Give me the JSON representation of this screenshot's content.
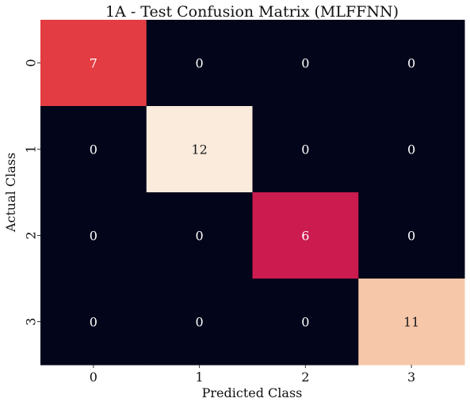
{
  "chart_data": {
    "type": "heatmap",
    "title": "1A - Test Confusion Matrix (MLFFNN)",
    "xlabel": "Predicted Class",
    "ylabel": "Actual Class",
    "x_categories": [
      "0",
      "1",
      "2",
      "3"
    ],
    "y_categories": [
      "0",
      "1",
      "2",
      "3"
    ],
    "values": [
      [
        7,
        0,
        0,
        0
      ],
      [
        0,
        12,
        0,
        0
      ],
      [
        0,
        0,
        6,
        0
      ],
      [
        0,
        0,
        0,
        11
      ]
    ],
    "colorbar": false,
    "colors": {
      "0": "#03051a",
      "6": "#cb1b4f",
      "7": "#e33c42",
      "11": "#f6c8a9",
      "12": "#faebdd"
    }
  }
}
